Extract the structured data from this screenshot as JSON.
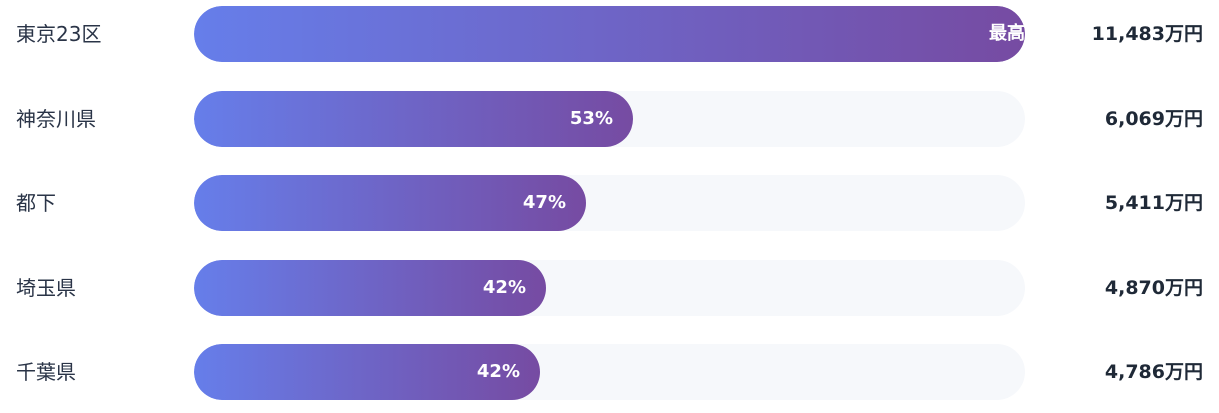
{
  "chart_data": {
    "type": "bar",
    "orientation": "horizontal",
    "categories": [
      "東京23区",
      "神奈川県",
      "都下",
      "埼玉県",
      "千葉県"
    ],
    "values": [
      11483,
      6069,
      5411,
      4870,
      4786
    ],
    "value_labels": [
      "11,483万円",
      "6,069万円",
      "5,411万円",
      "4,870万円",
      "4,786万円"
    ],
    "bar_labels": [
      "最高",
      "53%",
      "47%",
      "42%",
      "42%"
    ],
    "unit": "万円",
    "xlim": [
      0,
      11483
    ],
    "colors": {
      "gradient_start": "#667eea",
      "gradient_end": "#764ba2",
      "track": "#f6f8fb"
    }
  }
}
